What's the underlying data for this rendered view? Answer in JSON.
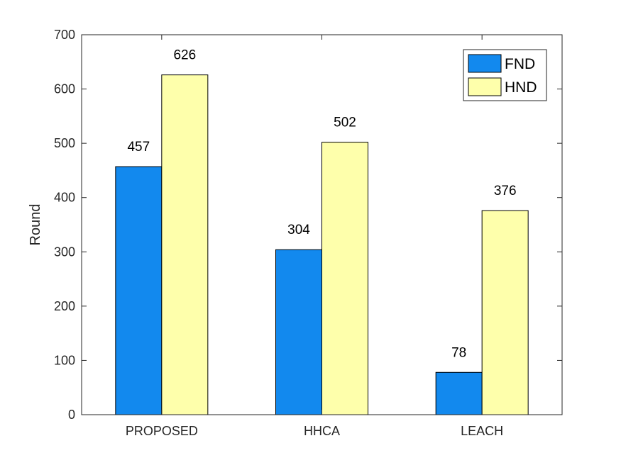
{
  "chart_data": {
    "type": "bar",
    "categories": [
      "PROPOSED",
      "HHCA",
      "LEACH"
    ],
    "series": [
      {
        "name": "FND",
        "values": [
          457,
          304,
          78
        ],
        "color": "#1289EE"
      },
      {
        "name": "HND",
        "values": [
          626,
          502,
          376
        ],
        "color": "#FEFFAB"
      }
    ],
    "ylabel": "Round",
    "ylim": [
      0,
      700
    ],
    "yticks": [
      0,
      100,
      200,
      300,
      400,
      500,
      600,
      700
    ],
    "legend_position": "top-right",
    "grid": false
  }
}
